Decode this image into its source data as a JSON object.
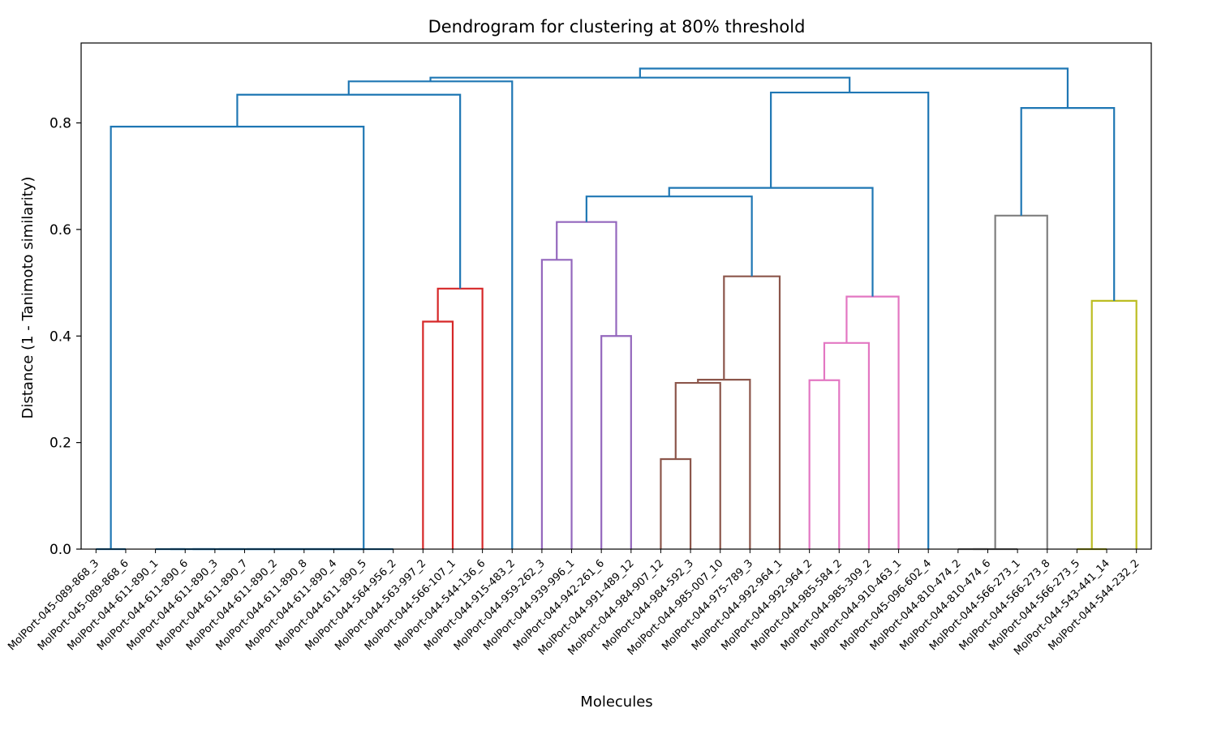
{
  "chart_data": {
    "type": "dendrogram",
    "title": "Dendrogram for clustering at 80% threshold",
    "xlabel": "Molecules",
    "ylabel": "Distance (1 - Tanimoto similarity)",
    "ylim": [
      0,
      0.95
    ],
    "yticks": [
      "0.0",
      "0.2",
      "0.4",
      "0.6",
      "0.8"
    ],
    "ytick_values": [
      0.0,
      0.2,
      0.4,
      0.6,
      0.8
    ],
    "grid": false,
    "colors": {
      "blue": "#1f77b4",
      "red": "#d62728",
      "purple": "#9467bd",
      "brown": "#8c564b",
      "pink": "#e377c2",
      "gray": "#7f7f7f",
      "olive": "#bcbd22"
    },
    "leaves": [
      "MolPort-045-089-868_3",
      "MolPort-045-089-868_6",
      "MolPort-044-611-890_1",
      "MolPort-044-611-890_6",
      "MolPort-044-611-890_3",
      "MolPort-044-611-890_7",
      "MolPort-044-611-890_2",
      "MolPort-044-611-890_8",
      "MolPort-044-611-890_4",
      "MolPort-044-611-890_5",
      "MolPort-044-564-956_2",
      "MolPort-044-563-997_2",
      "MolPort-044-566-107_1",
      "MolPort-044-544-136_6",
      "MolPort-044-915-483_2",
      "MolPort-044-959-262_3",
      "MolPort-044-939-996_1",
      "MolPort-044-942-261_6",
      "MolPort-044-991-489_12",
      "MolPort-044-984-907_12",
      "MolPort-044-984-592_3",
      "MolPort-044-985-007_10",
      "MolPort-044-975-789_3",
      "MolPort-044-992-964_1",
      "MolPort-044-992-964_2",
      "MolPort-044-985-584_2",
      "MolPort-044-985-309_2",
      "MolPort-044-910-463_1",
      "MolPort-045-096-602_4",
      "MolPort-044-810-474_2",
      "MolPort-044-810-474_6",
      "MolPort-044-566-273_1",
      "MolPort-044-566-273_8",
      "MolPort-044-566-273_5",
      "MolPort-044-543-441_14",
      "MolPort-044-544-232_2"
    ],
    "merges": [
      {
        "a": 0,
        "b": 1,
        "height": 0.0,
        "color": "blue"
      },
      {
        "a": 2,
        "b": 3,
        "height": 0.0,
        "color": "blue"
      },
      {
        "a": 37,
        "b": 4,
        "height": 0.0,
        "color": "blue"
      },
      {
        "a": 38,
        "b": 5,
        "height": 0.0,
        "color": "blue"
      },
      {
        "a": 39,
        "b": 6,
        "height": 0.0,
        "color": "blue"
      },
      {
        "a": 40,
        "b": 7,
        "height": 0.0,
        "color": "blue"
      },
      {
        "a": 41,
        "b": 8,
        "height": 0.0,
        "color": "blue"
      },
      {
        "a": 42,
        "b": 9,
        "height": 0.0,
        "color": "blue"
      },
      {
        "a": 43,
        "b": 10,
        "height": 0.0,
        "color": "blue"
      },
      {
        "a": 36,
        "b": 44,
        "height": 0.793,
        "color": "blue"
      },
      {
        "a": 11,
        "b": 12,
        "height": 0.427,
        "color": "red"
      },
      {
        "a": 46,
        "b": 13,
        "height": 0.489,
        "color": "red"
      },
      {
        "a": 45,
        "b": 47,
        "height": 0.853,
        "color": "blue"
      },
      {
        "a": 48,
        "b": 14,
        "height": 0.878,
        "color": "blue"
      },
      {
        "a": 15,
        "b": 16,
        "height": 0.543,
        "color": "purple"
      },
      {
        "a": 17,
        "b": 18,
        "height": 0.4,
        "color": "purple"
      },
      {
        "a": 50,
        "b": 51,
        "height": 0.614,
        "color": "purple"
      },
      {
        "a": 19,
        "b": 20,
        "height": 0.169,
        "color": "brown"
      },
      {
        "a": 53,
        "b": 21,
        "height": 0.312,
        "color": "brown"
      },
      {
        "a": 54,
        "b": 22,
        "height": 0.318,
        "color": "brown"
      },
      {
        "a": 55,
        "b": 23,
        "height": 0.512,
        "color": "brown"
      },
      {
        "a": 52,
        "b": 56,
        "height": 0.662,
        "color": "blue"
      },
      {
        "a": 24,
        "b": 25,
        "height": 0.317,
        "color": "pink"
      },
      {
        "a": 58,
        "b": 26,
        "height": 0.387,
        "color": "pink"
      },
      {
        "a": 59,
        "b": 27,
        "height": 0.474,
        "color": "pink"
      },
      {
        "a": 57,
        "b": 60,
        "height": 0.678,
        "color": "blue"
      },
      {
        "a": 61,
        "b": 28,
        "height": 0.857,
        "color": "blue"
      },
      {
        "a": 49,
        "b": 62,
        "height": 0.885,
        "color": "blue"
      },
      {
        "a": 29,
        "b": 30,
        "height": 0.0,
        "color": "gray"
      },
      {
        "a": 64,
        "b": 31,
        "height": 0.0,
        "color": "gray"
      },
      {
        "a": 65,
        "b": 32,
        "height": 0.626,
        "color": "gray"
      },
      {
        "a": 33,
        "b": 34,
        "height": 0.0,
        "color": "olive"
      },
      {
        "a": 67,
        "b": 35,
        "height": 0.466,
        "color": "olive"
      },
      {
        "a": 66,
        "b": 68,
        "height": 0.828,
        "color": "blue"
      },
      {
        "a": 63,
        "b": 69,
        "height": 0.902,
        "color": "blue"
      }
    ]
  }
}
